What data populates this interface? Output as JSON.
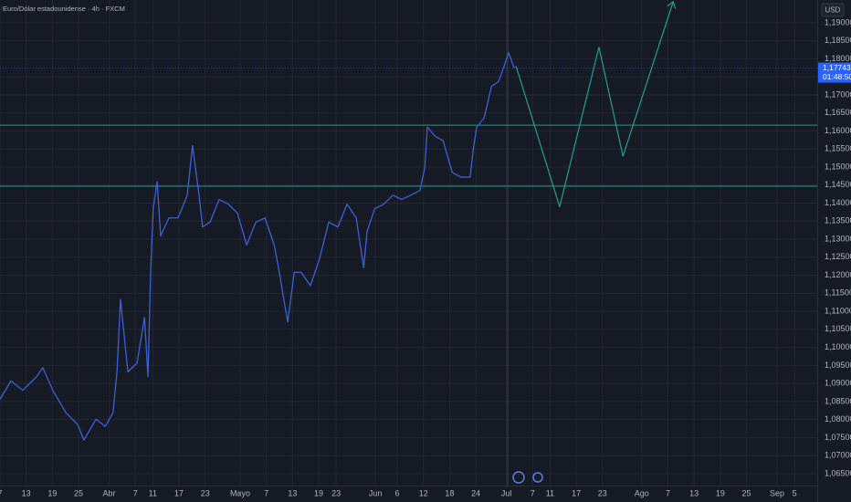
{
  "chart_data": {
    "type": "line",
    "title": "Euro/Dólar estadounidense · 4h · FXCM",
    "currency": "USD",
    "color": "#3b62d6",
    "x": [
      66.0,
      68.5,
      71.2,
      74.4,
      75.8,
      78.1,
      81.1,
      83.8,
      85.2,
      88.0,
      90.1,
      91.9,
      92.8,
      93.6,
      95.3,
      97.4,
      99.1,
      99.9,
      100.5,
      101.1,
      102.0,
      102.8,
      104.7,
      106.8,
      108.9,
      110.1,
      111.6,
      112.4,
      114.1,
      116.2,
      118.3,
      120.4,
      122.5,
      124.6,
      126.7,
      128.8,
      129.8,
      131.9,
      133.4,
      135.0,
      137.1,
      139.2,
      141.3,
      143.4,
      145.5,
      147.6,
      149.3,
      150.1,
      151.8,
      153.9,
      156.0,
      158.0,
      160.1,
      162.2,
      163.3,
      163.9,
      165.6,
      167.5,
      169.6,
      171.6,
      173.7,
      174.4,
      175.2,
      176.9,
      178.6,
      180.2,
      181.7,
      182.5,
      183.8
    ],
    "values": [
      1.0856,
      1.0907,
      1.0881,
      1.0919,
      1.0944,
      1.0881,
      1.0819,
      1.0786,
      1.0743,
      1.0801,
      1.0781,
      1.0819,
      1.0932,
      1.1133,
      1.0932,
      1.0957,
      1.1083,
      1.0919,
      1.1208,
      1.1384,
      1.146,
      1.1309,
      1.1359,
      1.1359,
      1.1422,
      1.156,
      1.1422,
      1.1334,
      1.1347,
      1.141,
      1.1397,
      1.1372,
      1.1284,
      1.1347,
      1.1359,
      1.1284,
      1.1221,
      1.107,
      1.1208,
      1.1208,
      1.1171,
      1.1246,
      1.1347,
      1.1334,
      1.1397,
      1.1359,
      1.1221,
      1.1322,
      1.1384,
      1.1397,
      1.1422,
      1.141,
      1.1422,
      1.1435,
      1.1498,
      1.1611,
      1.1586,
      1.1573,
      1.1485,
      1.1472,
      1.1472,
      1.1548,
      1.1611,
      1.1636,
      1.1724,
      1.1737,
      1.1787,
      1.1817,
      1.1774
    ],
    "projection": {
      "color": "#22a08e",
      "x": [
        184.2,
        194.2,
        203.2,
        208.7,
        220.2
      ],
      "values": [
        1.178,
        1.139,
        1.1832,
        1.153,
        1.1958
      ]
    },
    "levels": [
      1.1616,
      1.1447
    ],
    "level_color": "#1f9b8a",
    "last_price": {
      "value": 1.17743,
      "label": "1,17743"
    },
    "countdown": "01:48:50",
    "grid": true,
    "xlim": [
      66,
      253.2
    ],
    "ylim": [
      1.0617,
      1.1963
    ],
    "xticks": [
      {
        "value": 66,
        "label": "7"
      },
      {
        "value": 72,
        "label": "13"
      },
      {
        "value": 78,
        "label": "19"
      },
      {
        "value": 84,
        "label": "25"
      },
      {
        "value": 91,
        "label": "Abr"
      },
      {
        "value": 97,
        "label": "7"
      },
      {
        "value": 101,
        "label": "11"
      },
      {
        "value": 107,
        "label": "17"
      },
      {
        "value": 113,
        "label": "23"
      },
      {
        "value": 121,
        "label": "Mayo"
      },
      {
        "value": 127,
        "label": "7"
      },
      {
        "value": 133,
        "label": "13"
      },
      {
        "value": 139,
        "label": "19"
      },
      {
        "value": 143,
        "label": "23"
      },
      {
        "value": 152,
        "label": "Jun"
      },
      {
        "value": 157,
        "label": "6"
      },
      {
        "value": 163,
        "label": "12"
      },
      {
        "value": 169,
        "label": "18"
      },
      {
        "value": 175,
        "label": "24"
      },
      {
        "value": 182,
        "label": "Jul"
      },
      {
        "value": 188,
        "label": "7"
      },
      {
        "value": 192,
        "label": "11"
      },
      {
        "value": 198,
        "label": "17"
      },
      {
        "value": 204,
        "label": "23"
      },
      {
        "value": 213,
        "label": "Ago"
      },
      {
        "value": 219,
        "label": "7"
      },
      {
        "value": 225,
        "label": "13"
      },
      {
        "value": 231,
        "label": "19"
      },
      {
        "value": 237,
        "label": "25"
      },
      {
        "value": 244,
        "label": "Sep"
      },
      {
        "value": 248,
        "label": "5"
      }
    ],
    "yticks": [
      {
        "value": 1.065,
        "label": "1,06500"
      },
      {
        "value": 1.07,
        "label": "1,07000"
      },
      {
        "value": 1.075,
        "label": "1,07500"
      },
      {
        "value": 1.08,
        "label": "1,08000"
      },
      {
        "value": 1.085,
        "label": "1,08500"
      },
      {
        "value": 1.09,
        "label": "1,09000"
      },
      {
        "value": 1.095,
        "label": "1,09500"
      },
      {
        "value": 1.1,
        "label": "1,10000"
      },
      {
        "value": 1.105,
        "label": "1,10500"
      },
      {
        "value": 1.11,
        "label": "1,11000"
      },
      {
        "value": 1.115,
        "label": "1,11500"
      },
      {
        "value": 1.12,
        "label": "1,12000"
      },
      {
        "value": 1.125,
        "label": "1,12500"
      },
      {
        "value": 1.13,
        "label": "1,13000"
      },
      {
        "value": 1.135,
        "label": "1,13500"
      },
      {
        "value": 1.14,
        "label": "1,14000"
      },
      {
        "value": 1.145,
        "label": "1,14500"
      },
      {
        "value": 1.15,
        "label": "1,15000"
      },
      {
        "value": 1.155,
        "label": "1,15500"
      },
      {
        "value": 1.16,
        "label": "1,16000"
      },
      {
        "value": 1.165,
        "label": "1,16500"
      },
      {
        "value": 1.17,
        "label": "1,17000"
      },
      {
        "value": 1.175,
        "label": "1,17500"
      },
      {
        "value": 1.18,
        "label": "1,18000"
      },
      {
        "value": 1.185,
        "label": "1,18500"
      },
      {
        "value": 1.19,
        "label": "1,19000"
      }
    ]
  }
}
